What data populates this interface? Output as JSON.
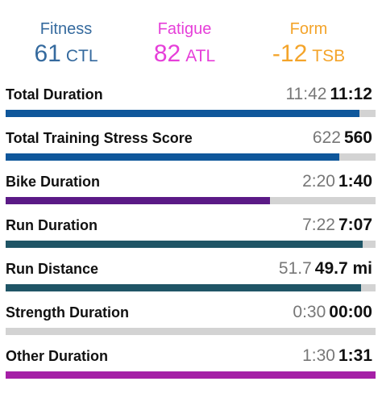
{
  "header": {
    "fitness": {
      "label": "Fitness",
      "value": "61",
      "unit": "CTL",
      "color": "#356a9e"
    },
    "fatigue": {
      "label": "Fatigue",
      "value": "82",
      "unit": "ATL",
      "color": "#e63fd9"
    },
    "form": {
      "label": "Form",
      "value": "-12",
      "unit": "TSB",
      "color": "#f4a42a"
    }
  },
  "rows": [
    {
      "title": "Total Duration",
      "planned": "11:42",
      "actual": "11:12",
      "progress": 0.957,
      "color": "#0f579b"
    },
    {
      "title": "Total Training Stress Score",
      "planned": "622",
      "actual": "560",
      "progress": 0.901,
      "color": "#0f579b"
    },
    {
      "title": "Bike Duration",
      "planned": "2:20",
      "actual": "1:40",
      "progress": 0.714,
      "color": "#5b1a86"
    },
    {
      "title": "Run Duration",
      "planned": "7:22",
      "actual": "7:07",
      "progress": 0.966,
      "color": "#1f5566"
    },
    {
      "title": "Run Distance",
      "planned": "51.7",
      "actual": "49.7 mi",
      "progress": 0.961,
      "color": "#1f5566"
    },
    {
      "title": "Strength Duration",
      "planned": "0:30",
      "actual": "00:00",
      "progress": 0.0,
      "color": "#a0a0a0"
    },
    {
      "title": "Other Duration",
      "planned": "1:30",
      "actual": "1:31",
      "progress": 1.0,
      "color": "#a51fa6"
    }
  ]
}
